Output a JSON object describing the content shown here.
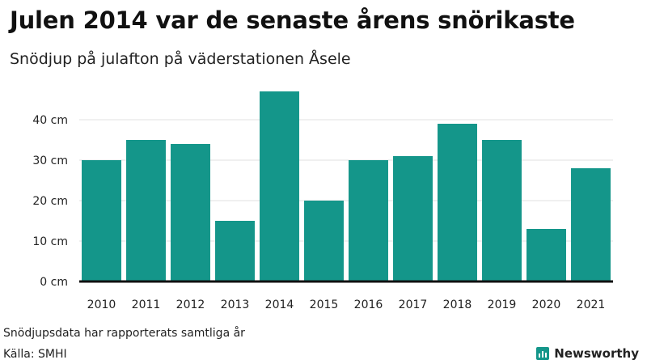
{
  "header": {
    "title": "Julen 2014 var de senaste årens snörikaste",
    "subtitle": "Snödjup på julafton på väderstationen Åsele"
  },
  "footer": {
    "note": "Snödjupsdata har rapporterats samtliga år",
    "source": "Källa: SMHI",
    "brand": "Newsworthy",
    "brand_icon": "bar-chart-logo-icon"
  },
  "colors": {
    "bar": "#14968a",
    "axis": "#111111",
    "grid": "#e0e0e0"
  },
  "chart_data": {
    "type": "bar",
    "title": "Julen 2014 var de senaste årens snörikaste",
    "subtitle": "Snödjup på julafton på väderstationen Åsele",
    "categories": [
      "2010",
      "2011",
      "2012",
      "2013",
      "2014",
      "2015",
      "2016",
      "2017",
      "2018",
      "2019",
      "2020",
      "2021"
    ],
    "values": [
      30,
      35,
      34,
      15,
      47,
      20,
      30,
      31,
      39,
      35,
      13,
      28
    ],
    "ylim": [
      0,
      50
    ],
    "yticks": [
      0,
      10,
      20,
      30,
      40
    ],
    "ytick_labels": [
      "0 cm",
      "10 cm",
      "20 cm",
      "30 cm",
      "40 cm"
    ],
    "xlabel": "",
    "ylabel": "",
    "grid": true,
    "legend": "none"
  }
}
